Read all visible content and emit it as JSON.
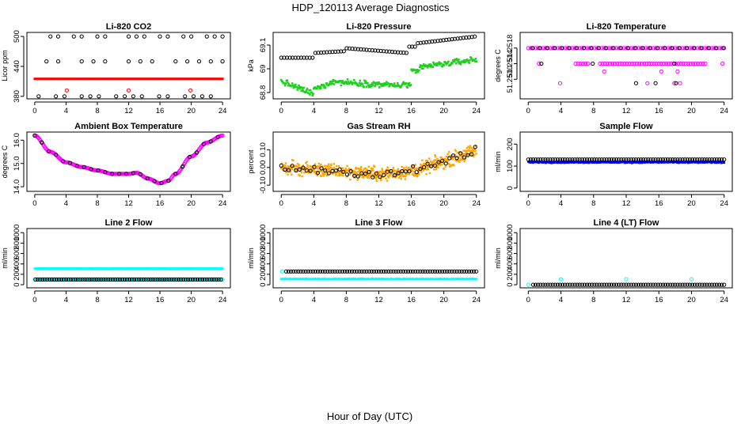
{
  "page": {
    "title": "HDP_120113  Average Diagnostics",
    "xlabel": "Hour of Day (UTC)"
  },
  "colors": {
    "black": "#000000",
    "red": "#ff0000",
    "green": "#1fd01f",
    "magenta": "#ff00ff",
    "orange": "#ffa500",
    "blue": "#0000ff",
    "cyan": "#00ffff",
    "frame": "#000000"
  },
  "chart_data": [
    {
      "id": "co2",
      "type": "scatter",
      "title": "Li-820 CO2",
      "ylabel": "Licor ppm",
      "xlim": [
        -1,
        25
      ],
      "xticks": [
        0,
        4,
        8,
        12,
        16,
        20,
        24
      ],
      "ylim": [
        375,
        508
      ],
      "yticks": [
        380,
        440,
        500
      ],
      "ytick_labels": [
        "380",
        "440",
        "500"
      ],
      "series": [
        {
          "name": "co2-mean",
          "color": "red",
          "gen": "dense",
          "from": 0,
          "to": 24,
          "step": 0.25,
          "base": 415,
          "amp": 0,
          "noise": 0,
          "marker": "pt",
          "size": 3
        },
        {
          "name": "co2-high",
          "color": "black",
          "gen": "sparse",
          "from": 2,
          "to": 24,
          "step": 1,
          "level": 500,
          "marker": "circle",
          "keep": [
            1,
            1,
            0,
            1,
            1,
            0,
            1,
            1,
            0,
            0,
            1,
            1,
            1,
            0,
            1,
            1,
            0,
            1,
            1,
            0,
            1,
            1,
            1
          ]
        },
        {
          "name": "co2-mid",
          "color": "black",
          "gen": "sparse",
          "from": 1.5,
          "to": 24,
          "step": 1.5,
          "level": 450,
          "marker": "circle",
          "keep": [
            1,
            1,
            0,
            1,
            1,
            1,
            0,
            1,
            1,
            1,
            0,
            1,
            1,
            1,
            1,
            1
          ]
        },
        {
          "name": "co2-low",
          "color": "black",
          "gen": "sparse",
          "from": 0.5,
          "to": 24,
          "step": 1.1,
          "level": 380,
          "marker": "circle",
          "keep": [
            1,
            0,
            1,
            1,
            0,
            1,
            1,
            1,
            0,
            1,
            1,
            1,
            1,
            0,
            1,
            1,
            0,
            1,
            1,
            1,
            1,
            0
          ]
        },
        {
          "name": "co2-red-outliers",
          "color": "red",
          "gen": "list",
          "x": [
            4.1,
            12.0,
            19.9
          ],
          "y": [
            392,
            392,
            392
          ],
          "marker": "circle"
        }
      ]
    },
    {
      "id": "pressure",
      "type": "scatter",
      "title": "Li-820 Pressure",
      "ylabel": "kPa",
      "xlim": [
        -1,
        25
      ],
      "xticks": [
        0,
        4,
        8,
        12,
        16,
        20,
        24
      ],
      "ylim": [
        68.76,
        69.18
      ],
      "yticks": [
        68.8,
        68.95,
        69.1
      ],
      "ytick_labels": [
        "68.8",
        "69",
        "69.1"
      ],
      "series": [
        {
          "name": "pressure-points",
          "color": "green",
          "gen": "dense",
          "from": 0,
          "to": 24,
          "step": 0.08,
          "curve": "pressure_lo",
          "noise": 0.028,
          "marker": "pt",
          "size": 2.6
        },
        {
          "name": "pressure-means",
          "color": "black",
          "gen": "sparse",
          "from": 0,
          "to": 24,
          "step": 0.35,
          "curve": "pressure_hi",
          "marker": "circle"
        }
      ]
    },
    {
      "id": "temperature",
      "type": "scatter",
      "title": "Li-820 Temperature",
      "ylabel": "degrees C",
      "xlim": [
        -1,
        25
      ],
      "xticks": [
        0,
        4,
        8,
        12,
        16,
        20,
        24
      ],
      "ylim": [
        51.2505,
        51.2522
      ],
      "yticks": [
        51.251,
        51.2514,
        51.2518
      ],
      "ytick_labels": [
        "51.2510",
        "51.2514",
        "51.2518"
      ],
      "series": [
        {
          "name": "temp-top",
          "color": "magenta",
          "gen": "sparse",
          "from": 0,
          "to": 24,
          "step": 0.3,
          "level": 51.2518,
          "marker": "circle"
        },
        {
          "name": "temp-top-black",
          "color": "black",
          "gen": "sparse",
          "from": 0.5,
          "to": 24,
          "step": 0.9,
          "level": 51.2518,
          "marker": "circle"
        },
        {
          "name": "temp-mid",
          "color": "magenta",
          "gen": "sparse",
          "from": 1.3,
          "to": 24,
          "step": 0.3,
          "level": 51.2514,
          "marker": "circle",
          "keep": [
            1,
            0,
            0,
            0,
            0,
            0,
            0,
            0,
            0,
            0,
            0,
            0,
            0,
            0,
            0,
            1,
            1,
            1,
            1,
            1,
            1,
            0,
            0,
            0,
            0,
            1,
            1,
            1,
            1,
            1,
            1,
            1,
            1,
            1,
            1,
            1,
            1,
            1,
            1,
            1,
            1,
            1,
            1,
            1,
            1,
            1,
            1,
            1,
            1,
            1,
            1,
            1,
            1,
            1,
            1,
            1,
            1,
            1,
            1,
            1,
            1,
            1,
            1,
            1,
            1,
            1,
            1,
            1,
            1,
            0,
            0,
            0,
            0,
            0,
            0,
            1,
            1,
            1
          ]
        },
        {
          "name": "temp-mid-black",
          "color": "black",
          "gen": "list",
          "x": [
            1.6,
            7.9,
            17.9
          ],
          "y": [
            51.2514,
            51.2514,
            51.2514
          ],
          "marker": "circle"
        },
        {
          "name": "temp-low",
          "color": "magenta",
          "gen": "list",
          "x": [
            9.3,
            16.3,
            18.3
          ],
          "y": [
            51.2512,
            51.2512,
            51.2512
          ],
          "marker": "circle"
        },
        {
          "name": "temp-bottom",
          "color": "magenta",
          "gen": "list",
          "x": [
            3.9,
            14.6,
            17.9,
            18.6
          ],
          "y": [
            51.2509,
            51.2509,
            51.2509,
            51.2509
          ],
          "marker": "circle"
        },
        {
          "name": "temp-bottom-black",
          "color": "black",
          "gen": "list",
          "x": [
            13.2,
            15.6,
            18.1
          ],
          "y": [
            51.2509,
            51.2509,
            51.2509
          ],
          "marker": "circle"
        }
      ]
    },
    {
      "id": "boxtemp",
      "type": "scatter",
      "title": "Ambient Box Temperature",
      "ylabel": "degrees C",
      "xlim": [
        -1,
        25
      ],
      "xticks": [
        0,
        4,
        8,
        12,
        16,
        20,
        24
      ],
      "ylim": [
        13.8,
        16.35
      ],
      "yticks": [
        14.0,
        15.0,
        16.0
      ],
      "ytick_labels": [
        "14.0",
        "15.0",
        "16.0"
      ],
      "series": [
        {
          "name": "boxtemp-points",
          "color": "magenta",
          "gen": "dense",
          "from": 0,
          "to": 24,
          "step": 0.12,
          "curve": "boxtemp",
          "noise": 0,
          "marker": "circle"
        },
        {
          "name": "boxtemp-means",
          "color": "black",
          "gen": "sparse",
          "from": 0,
          "to": 24,
          "step": 0.9,
          "curve": "boxtemp",
          "marker": "circle"
        }
      ]
    },
    {
      "id": "rh",
      "type": "scatter",
      "title": "Gas Stream RH",
      "ylabel": "percent",
      "xlim": [
        -1,
        25
      ],
      "xticks": [
        0,
        4,
        8,
        12,
        16,
        20,
        24
      ],
      "ylim": [
        -0.135,
        0.2
      ],
      "yticks": [
        -0.1,
        0.0,
        0.1
      ],
      "ytick_labels": [
        "-0.10",
        "0.00",
        "0.10"
      ],
      "series": [
        {
          "name": "rh-points",
          "color": "orange",
          "gen": "dense",
          "from": 0,
          "to": 24,
          "step": 0.04,
          "curve": "rh",
          "noise": 0.055,
          "marker": "pt",
          "size": 2.4
        },
        {
          "name": "rh-means",
          "color": "black",
          "gen": "sparse",
          "from": 0,
          "to": 24,
          "step": 0.45,
          "curve": "rh",
          "noise": 0.035,
          "marker": "circle"
        }
      ]
    },
    {
      "id": "sampleflow",
      "type": "scatter",
      "title": "Sample Flow",
      "ylabel": "ml/min",
      "xlim": [
        -1,
        25
      ],
      "xticks": [
        0,
        4,
        8,
        12,
        16,
        20,
        24
      ],
      "ylim": [
        -15,
        255
      ],
      "yticks": [
        0,
        100,
        200
      ],
      "ytick_labels": [
        "0",
        "100",
        "200"
      ],
      "series": [
        {
          "name": "sampleflow-points",
          "color": "blue",
          "gen": "dense",
          "from": 0,
          "to": 24,
          "step": 0.05,
          "base": 118,
          "amp": 0,
          "noise": 5,
          "marker": "pt",
          "size": 2.6
        },
        {
          "name": "sampleflow-means",
          "color": "black",
          "gen": "sparse",
          "from": 0,
          "to": 24,
          "step": 0.3,
          "level": 130,
          "marker": "circle"
        }
      ]
    },
    {
      "id": "line2",
      "type": "scatter",
      "title": "Line 2 Flow",
      "ylabel": "ml/min",
      "xlim": [
        -1,
        25
      ],
      "xticks": [
        0,
        4,
        8,
        12,
        16,
        20,
        24
      ],
      "ylim": [
        -60,
        1080
      ],
      "yticks": [
        0,
        200,
        400,
        600,
        800,
        1000
      ],
      "ytick_labels": [
        "0",
        "200",
        "400",
        "600",
        "800",
        "1000"
      ],
      "series": [
        {
          "name": "line2-high",
          "color": "cyan",
          "gen": "dense",
          "from": 0,
          "to": 24,
          "step": 0.04,
          "base": 310,
          "amp": 0,
          "noise": 8,
          "marker": "pt",
          "size": 2.6
        },
        {
          "name": "line2-low",
          "color": "cyan",
          "gen": "sparse",
          "from": 0,
          "to": 24,
          "step": 0.3,
          "level": 100,
          "marker": "circle"
        },
        {
          "name": "line2-low-black",
          "color": "black",
          "gen": "sparse",
          "from": 0.1,
          "to": 24,
          "step": 0.3,
          "level": 100,
          "marker": "circle"
        }
      ]
    },
    {
      "id": "line3",
      "type": "scatter",
      "title": "Line 3 Flow",
      "ylabel": "ml/min",
      "xlim": [
        -1,
        25
      ],
      "xticks": [
        0,
        4,
        8,
        12,
        16,
        20,
        24
      ],
      "ylim": [
        -60,
        1080
      ],
      "yticks": [
        0,
        200,
        400,
        600,
        800,
        1000
      ],
      "ytick_labels": [
        "0",
        "200",
        "400",
        "600",
        "800",
        "1000"
      ],
      "series": [
        {
          "name": "line3-low",
          "color": "cyan",
          "gen": "dense",
          "from": 0,
          "to": 24,
          "step": 0.04,
          "base": 110,
          "amp": 0,
          "noise": 8,
          "marker": "pt",
          "size": 2.6
        },
        {
          "name": "line3-high",
          "color": "black",
          "gen": "sparse",
          "from": 0.6,
          "to": 24,
          "step": 0.3,
          "level": 255,
          "marker": "circle"
        },
        {
          "name": "line3-start",
          "color": "cyan",
          "gen": "list",
          "x": [
            0.1
          ],
          "y": [
            255
          ],
          "marker": "circle"
        }
      ]
    },
    {
      "id": "line4",
      "type": "scatter",
      "title": "Line 4 (LT) Flow",
      "ylabel": "ml/min",
      "xlim": [
        -1,
        25
      ],
      "xticks": [
        0,
        4,
        8,
        12,
        16,
        20,
        24
      ],
      "ylim": [
        -60,
        1080
      ],
      "yticks": [
        0,
        200,
        400,
        600,
        800,
        1000
      ],
      "ytick_labels": [
        "0",
        "200",
        "400",
        "600",
        "800",
        "1000"
      ],
      "series": [
        {
          "name": "line4-zero",
          "color": "black",
          "gen": "sparse",
          "from": 0.6,
          "to": 24,
          "step": 0.3,
          "level": 0,
          "marker": "circle"
        },
        {
          "name": "line4-cyan",
          "color": "cyan",
          "gen": "list",
          "x": [
            0.0,
            4.0,
            12.0,
            20.0
          ],
          "y": [
            0,
            105,
            105,
            105
          ],
          "marker": "circle"
        }
      ]
    }
  ]
}
